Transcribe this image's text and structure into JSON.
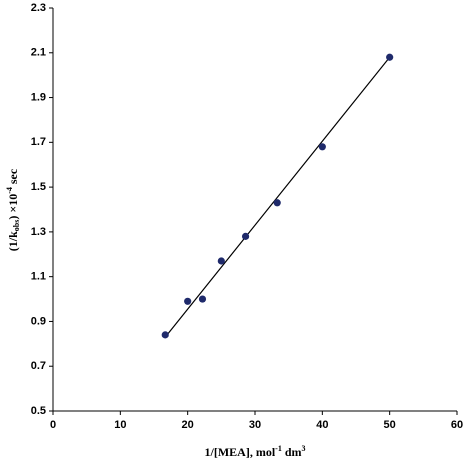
{
  "chart_data": {
    "type": "scatter",
    "x_label": {
      "base": "1/[MEA], mol",
      "sup1": "-1",
      "mid": " dm",
      "sup2": "3"
    },
    "y_label": {
      "base": "(1/k",
      "sub": "obs",
      "mid": ") ×10",
      "sup": "-4",
      "end": " sec"
    },
    "x": [
      16.67,
      20,
      22.2,
      25,
      28.6,
      33.3,
      40,
      50
    ],
    "values": [
      0.84,
      0.99,
      1.0,
      1.17,
      1.28,
      1.43,
      1.68,
      2.08
    ],
    "color": "#1f2a6b",
    "fit": {
      "x": [
        16.67,
        50
      ],
      "values": [
        0.83,
        2.08
      ],
      "color": "#000000"
    },
    "xlim": [
      0,
      60
    ],
    "xticks": [
      0,
      10,
      20,
      30,
      40,
      50,
      60
    ],
    "ylim": [
      0.5,
      2.3
    ],
    "yticks": [
      0.5,
      0.7,
      0.9,
      1.1,
      1.3,
      1.5,
      1.7,
      1.9,
      2.1,
      2.3
    ],
    "grid": false
  }
}
